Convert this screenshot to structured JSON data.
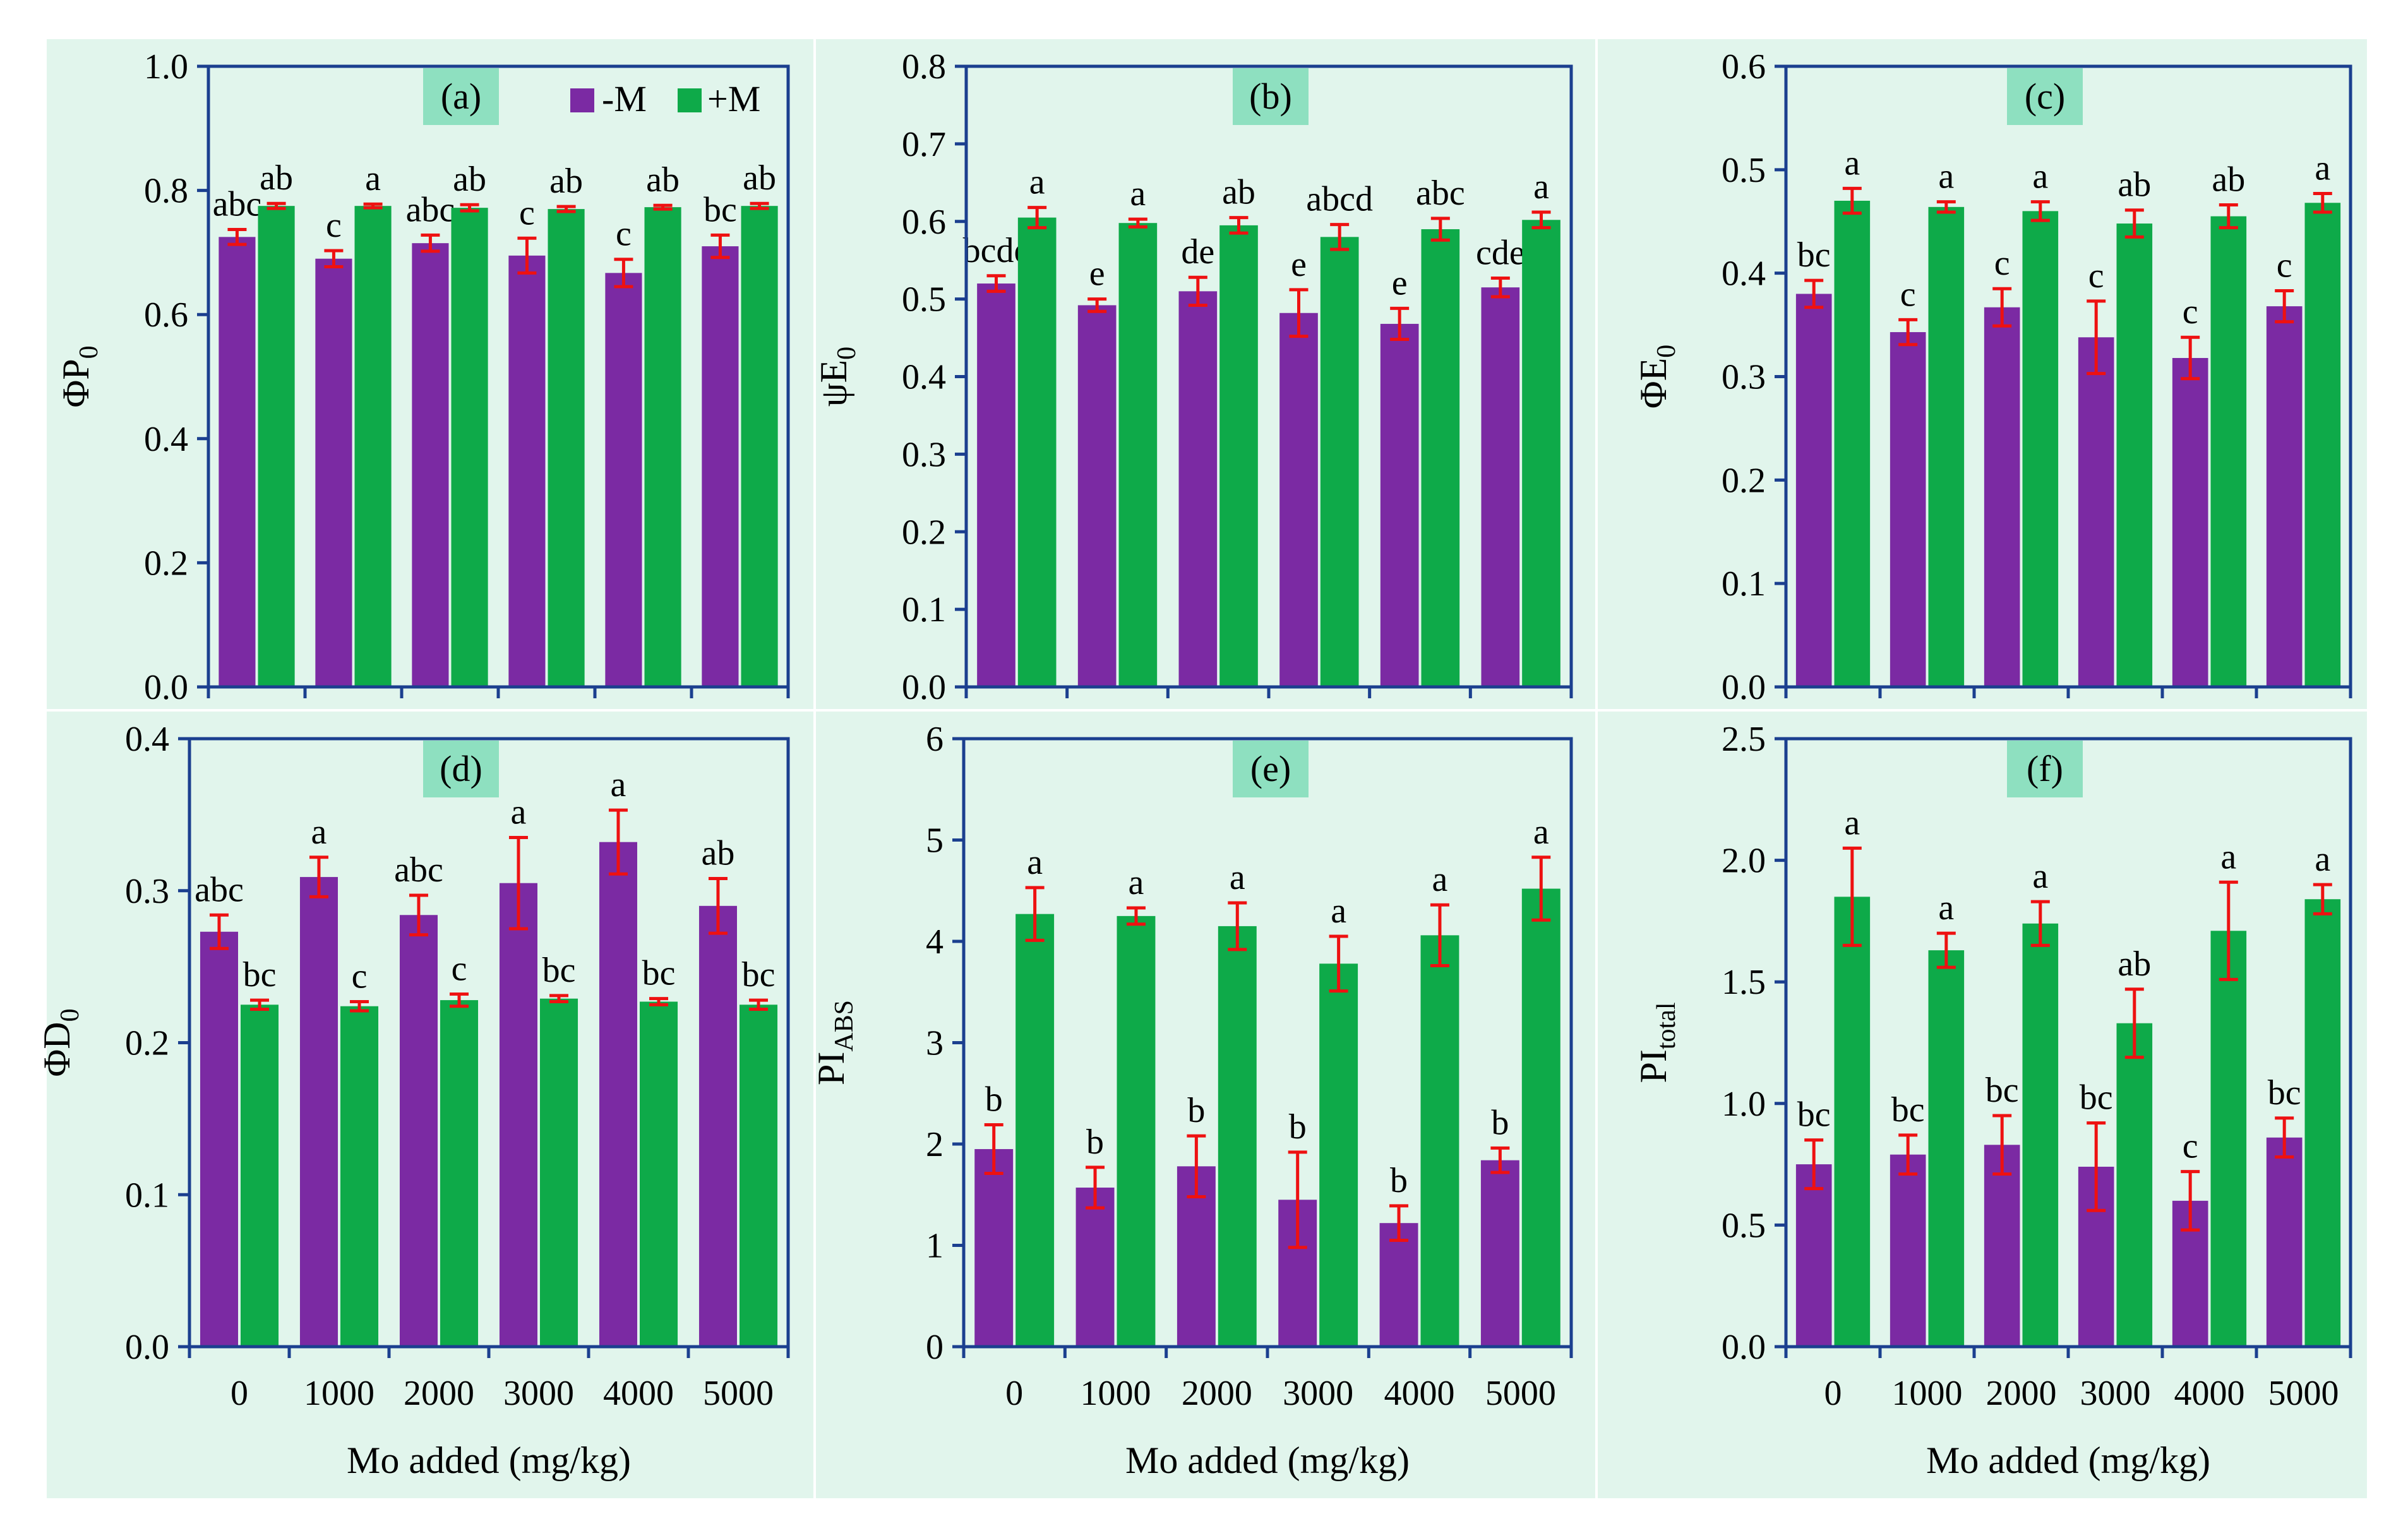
{
  "colors": {
    "panel_bg": "#e1f5ec",
    "minus_m": "#7b2aa3",
    "plus_m": "#0eaa49",
    "error_bar": "#ee1111",
    "axis": "#1b3f8f",
    "label_box": "#8ee0c0",
    "text": "#000000"
  },
  "legend": {
    "minus_label": "-M",
    "plus_label": "+M"
  },
  "chart_data": [
    {
      "type": "bar",
      "panel": "(a)",
      "title": "(a)",
      "ylabel": "ΦP",
      "ylabel_sub": "0",
      "xlabel": "",
      "categories": [
        "0",
        "1000",
        "2000",
        "3000",
        "4000",
        "5000"
      ],
      "ylim": [
        0,
        1.0
      ],
      "yticks": [
        "0.0",
        "0.2",
        "0.4",
        "0.6",
        "0.8",
        "1.0"
      ],
      "grid": false,
      "legend": "top-right",
      "series": [
        {
          "name": "-M",
          "values": [
            0.725,
            0.69,
            0.715,
            0.695,
            0.667,
            0.71
          ],
          "errors": [
            0.012,
            0.013,
            0.013,
            0.028,
            0.022,
            0.018
          ],
          "labels": [
            "abc",
            "c",
            "abc",
            "c",
            "c",
            "bc"
          ]
        },
        {
          "name": "+M",
          "values": [
            0.775,
            0.775,
            0.772,
            0.77,
            0.773,
            0.775
          ],
          "errors": [
            0.004,
            0.003,
            0.005,
            0.004,
            0.003,
            0.004
          ],
          "labels": [
            "ab",
            "a",
            "ab",
            "ab",
            "ab",
            "ab"
          ]
        }
      ]
    },
    {
      "type": "bar",
      "panel": "(b)",
      "title": "(b)",
      "ylabel": "ψE",
      "ylabel_sub": "0",
      "xlabel": "",
      "categories": [
        "0",
        "1000",
        "2000",
        "3000",
        "4000",
        "5000"
      ],
      "ylim": [
        0,
        0.8
      ],
      "yticks": [
        "0.0",
        "0.1",
        "0.2",
        "0.3",
        "0.4",
        "0.5",
        "0.6",
        "0.7",
        "0.8"
      ],
      "grid": false,
      "legend": "",
      "series": [
        {
          "name": "-M",
          "values": [
            0.52,
            0.492,
            0.51,
            0.482,
            0.468,
            0.515
          ],
          "errors": [
            0.01,
            0.008,
            0.018,
            0.03,
            0.02,
            0.012
          ],
          "labels": [
            "bcde",
            "e",
            "de",
            "e",
            "e",
            "cde"
          ]
        },
        {
          "name": "+M",
          "values": [
            0.605,
            0.598,
            0.595,
            0.58,
            0.59,
            0.602
          ],
          "errors": [
            0.013,
            0.005,
            0.01,
            0.016,
            0.014,
            0.01
          ],
          "labels": [
            "a",
            "a",
            "ab",
            "abcd",
            "abc",
            "a"
          ]
        }
      ]
    },
    {
      "type": "bar",
      "panel": "(c)",
      "title": "(c)",
      "ylabel": "ΦE",
      "ylabel_sub": "0",
      "xlabel": "",
      "categories": [
        "0",
        "1000",
        "2000",
        "3000",
        "4000",
        "5000"
      ],
      "ylim": [
        0,
        0.6
      ],
      "yticks": [
        "0.0",
        "0.1",
        "0.2",
        "0.3",
        "0.4",
        "0.5",
        "0.6"
      ],
      "grid": false,
      "legend": "",
      "series": [
        {
          "name": "-M",
          "values": [
            0.38,
            0.343,
            0.367,
            0.338,
            0.318,
            0.368
          ],
          "errors": [
            0.013,
            0.012,
            0.018,
            0.035,
            0.02,
            0.015
          ],
          "labels": [
            "bc",
            "c",
            "c",
            "c",
            "c",
            "c"
          ]
        },
        {
          "name": "+M",
          "values": [
            0.47,
            0.464,
            0.46,
            0.448,
            0.455,
            0.468
          ],
          "errors": [
            0.012,
            0.005,
            0.009,
            0.013,
            0.011,
            0.009
          ],
          "labels": [
            "a",
            "a",
            "a",
            "ab",
            "ab",
            "a"
          ]
        }
      ]
    },
    {
      "type": "bar",
      "panel": "(d)",
      "title": "(d)",
      "ylabel": "ΦD",
      "ylabel_sub": "0",
      "xlabel": "Mo added (mg/kg)",
      "categories": [
        "0",
        "1000",
        "2000",
        "3000",
        "4000",
        "5000"
      ],
      "ylim": [
        0,
        0.4
      ],
      "yticks": [
        "0.0",
        "0.1",
        "0.2",
        "0.3",
        "0.4"
      ],
      "grid": false,
      "legend": "",
      "series": [
        {
          "name": "-M",
          "values": [
            0.273,
            0.309,
            0.284,
            0.305,
            0.332,
            0.29
          ],
          "errors": [
            0.011,
            0.013,
            0.013,
            0.03,
            0.021,
            0.018
          ],
          "labels": [
            "abc",
            "a",
            "abc",
            "a",
            "a",
            "ab"
          ]
        },
        {
          "name": "+M",
          "values": [
            0.225,
            0.224,
            0.228,
            0.229,
            0.227,
            0.225
          ],
          "errors": [
            0.003,
            0.003,
            0.004,
            0.002,
            0.002,
            0.003
          ],
          "labels": [
            "bc",
            "c",
            "c",
            "bc",
            "bc",
            "bc"
          ]
        }
      ]
    },
    {
      "type": "bar",
      "panel": "(e)",
      "title": "(e)",
      "ylabel": "PI",
      "ylabel_sub": "ABS",
      "xlabel": "Mo added (mg/kg)",
      "categories": [
        "0",
        "1000",
        "2000",
        "3000",
        "4000",
        "5000"
      ],
      "ylim": [
        0,
        6
      ],
      "yticks": [
        "0",
        "1",
        "2",
        "3",
        "4",
        "5",
        "6"
      ],
      "grid": false,
      "legend": "",
      "series": [
        {
          "name": "-M",
          "values": [
            1.95,
            1.57,
            1.78,
            1.45,
            1.22,
            1.84
          ],
          "errors": [
            0.24,
            0.2,
            0.3,
            0.47,
            0.17,
            0.12
          ],
          "labels": [
            "b",
            "b",
            "b",
            "b",
            "b",
            "b"
          ]
        },
        {
          "name": "+M",
          "values": [
            4.27,
            4.25,
            4.15,
            3.78,
            4.06,
            4.52
          ],
          "errors": [
            0.26,
            0.08,
            0.23,
            0.27,
            0.3,
            0.31
          ],
          "labels": [
            "a",
            "a",
            "a",
            "a",
            "a",
            "a"
          ]
        }
      ]
    },
    {
      "type": "bar",
      "panel": "(f)",
      "title": "(f)",
      "ylabel": "PI",
      "ylabel_sub": "total",
      "xlabel": "Mo added (mg/kg)",
      "categories": [
        "0",
        "1000",
        "2000",
        "3000",
        "4000",
        "5000"
      ],
      "ylim": [
        0,
        2.5
      ],
      "yticks": [
        "0.0",
        "0.5",
        "1.0",
        "1.5",
        "2.0",
        "2.5"
      ],
      "grid": false,
      "legend": "",
      "series": [
        {
          "name": "-M",
          "values": [
            0.75,
            0.79,
            0.83,
            0.74,
            0.6,
            0.86
          ],
          "errors": [
            0.1,
            0.08,
            0.12,
            0.18,
            0.12,
            0.08
          ],
          "labels": [
            "bc",
            "bc",
            "bc",
            "bc",
            "c",
            "bc"
          ]
        },
        {
          "name": "+M",
          "values": [
            1.85,
            1.63,
            1.74,
            1.33,
            1.71,
            1.84
          ],
          "errors": [
            0.2,
            0.07,
            0.09,
            0.14,
            0.2,
            0.06
          ],
          "labels": [
            "a",
            "a",
            "a",
            "ab",
            "a",
            "a"
          ]
        }
      ]
    }
  ]
}
